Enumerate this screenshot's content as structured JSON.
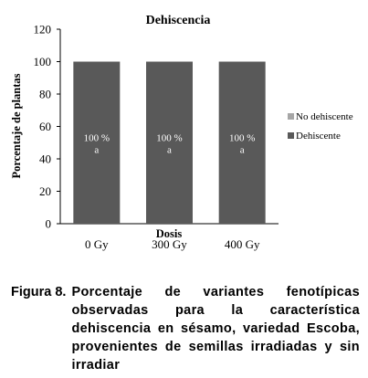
{
  "chart_data": {
    "type": "bar",
    "stacked": true,
    "title": "Dehiscencia",
    "xlabel": "Dosis",
    "ylabel": "Porcentaje de plantas",
    "categories": [
      "0 Gy",
      "300 Gy",
      "400 Gy"
    ],
    "ylim": [
      0,
      120
    ],
    "yticks": [
      0,
      20,
      40,
      60,
      80,
      100,
      120
    ],
    "grid": false,
    "legend_position": "right",
    "series": [
      {
        "name": "Dehiscente",
        "color": "#595959",
        "values": [
          100,
          100,
          100
        ],
        "labels": [
          "100 %",
          "100 %",
          "100 %"
        ],
        "sublabels": [
          "a",
          "a",
          "a"
        ]
      },
      {
        "name": "No dehiscente",
        "color": "#a6a6a6",
        "values": [
          0,
          0,
          0
        ]
      }
    ],
    "legend": [
      "No dehiscente",
      "Dehiscente"
    ]
  },
  "caption": {
    "label": "Figura 8.",
    "text": "Porcentaje de variantes fenotípicas observadas para la característica dehiscencia en sésamo, variedad Escoba, provenientes de semillas irradiadas y sin irradiar"
  }
}
